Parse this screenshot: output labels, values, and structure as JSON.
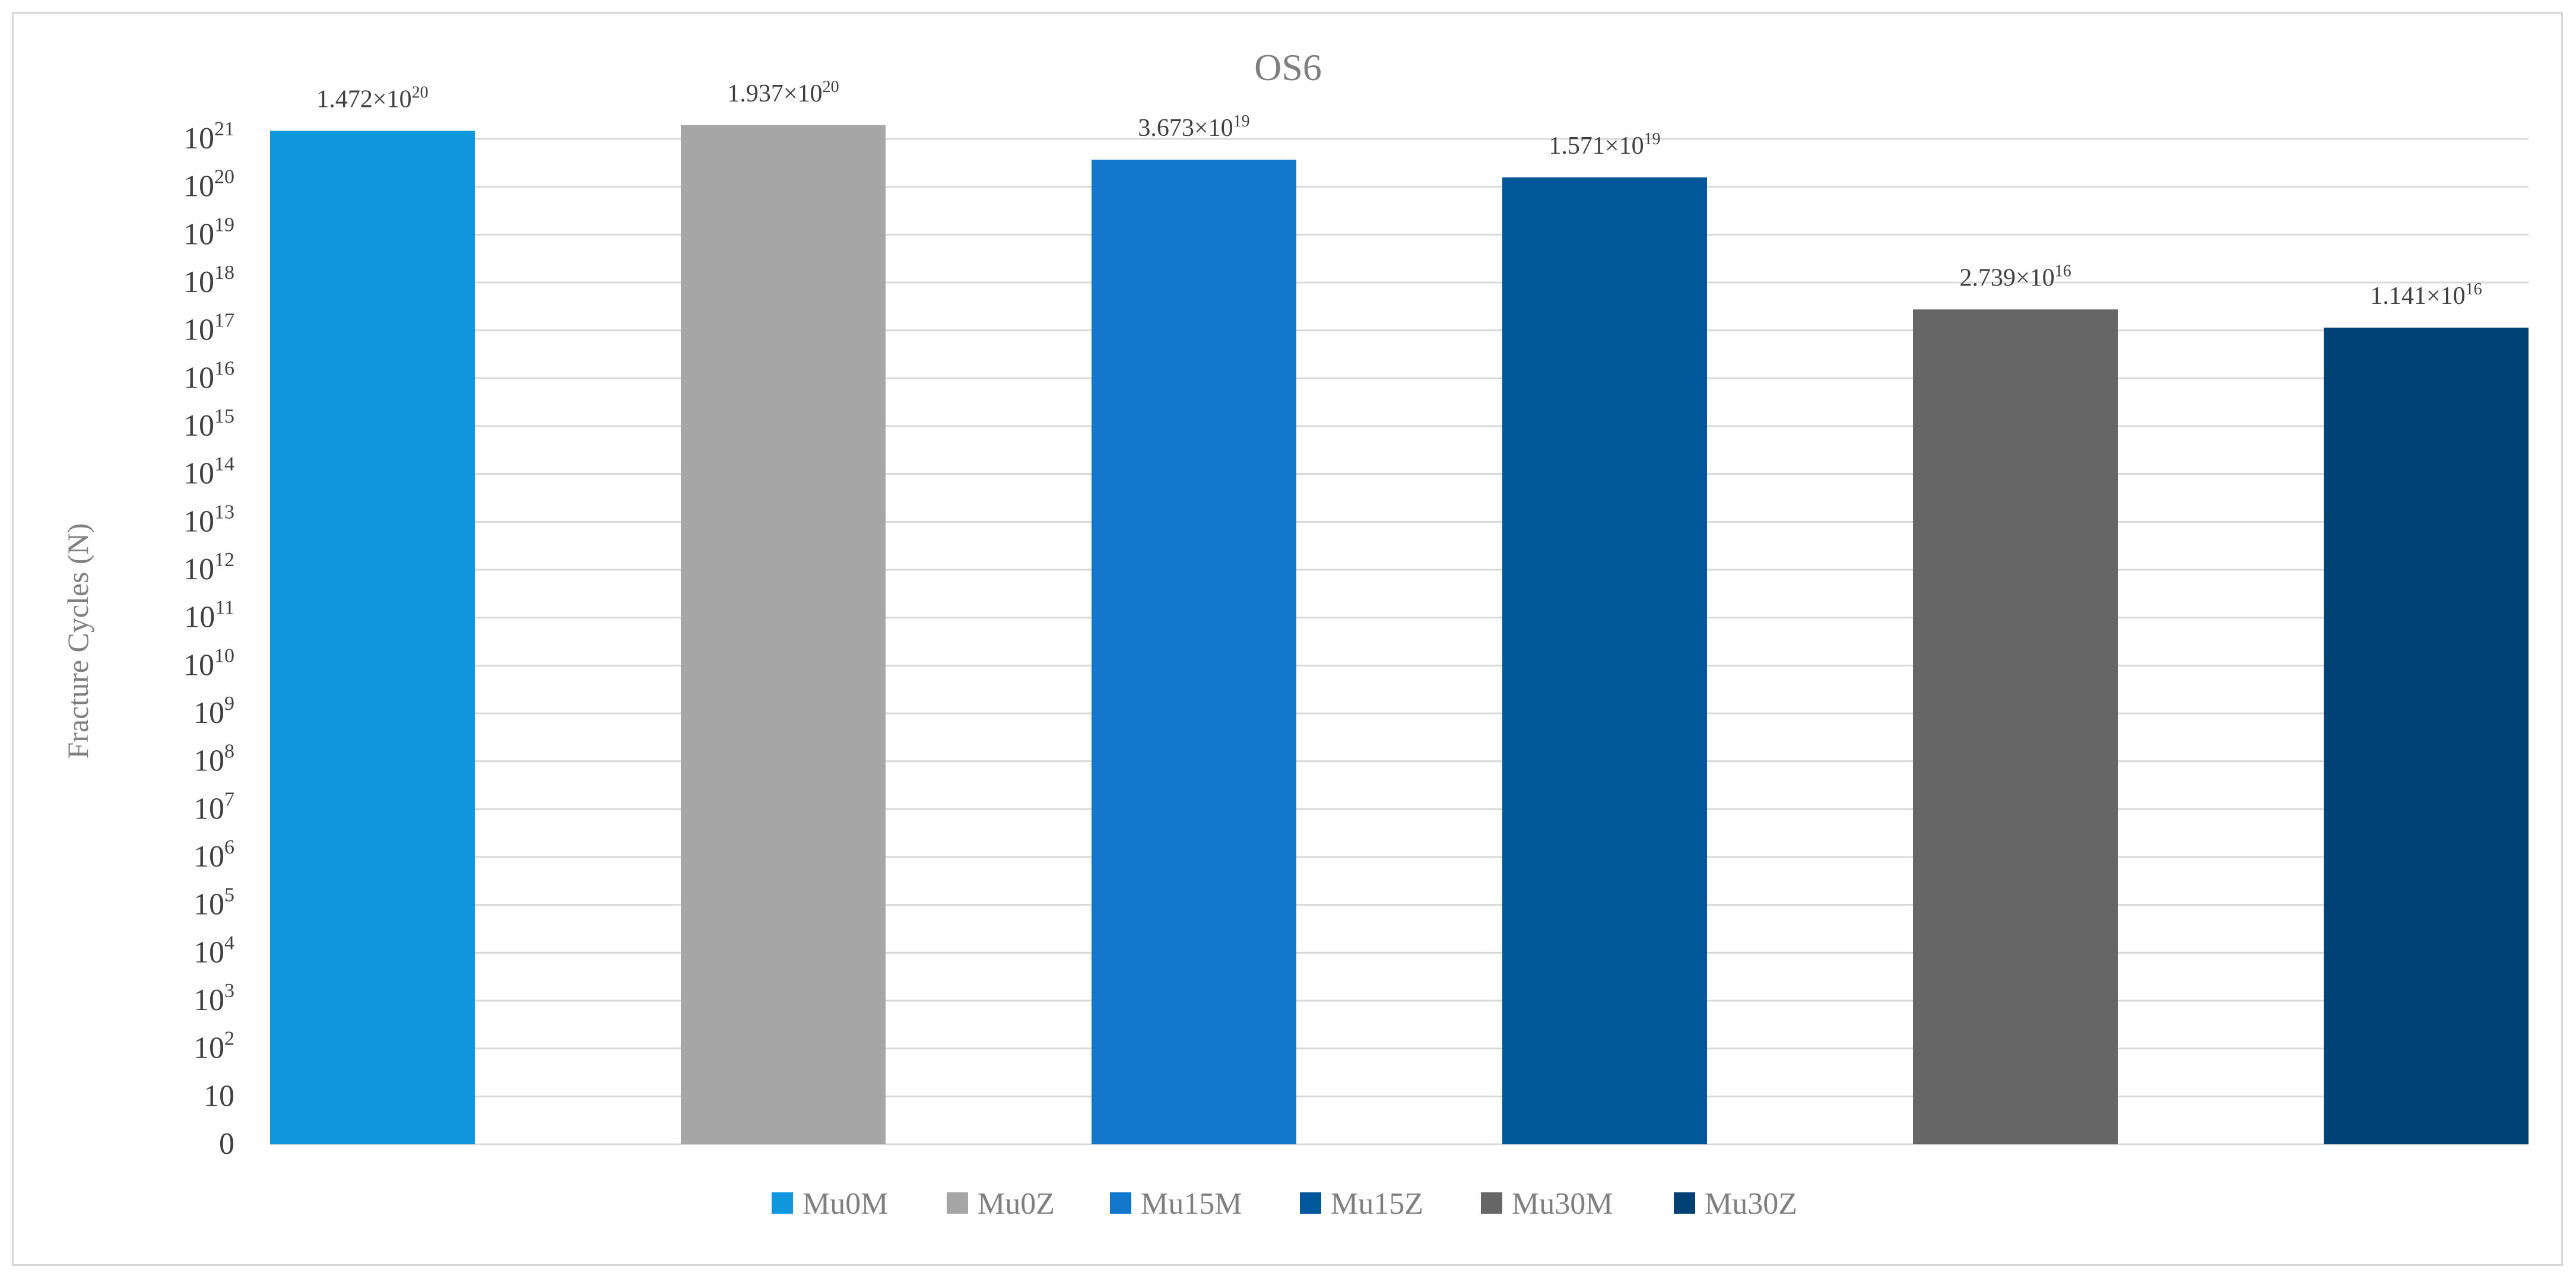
{
  "chart_data": {
    "type": "bar",
    "title": "OS6",
    "ylabel": "Fracture Cycles (N)",
    "xlabel": "",
    "y_scale": "log",
    "ylim": [
      0,
      1e+21
    ],
    "grid": true,
    "legend_position": "bottom",
    "y_ticks": [
      {
        "base": "0",
        "exp": ""
      },
      {
        "base": "10",
        "exp": ""
      },
      {
        "base": "10",
        "exp": "2"
      },
      {
        "base": "10",
        "exp": "3"
      },
      {
        "base": "10",
        "exp": "4"
      },
      {
        "base": "10",
        "exp": "5"
      },
      {
        "base": "10",
        "exp": "6"
      },
      {
        "base": "10",
        "exp": "7"
      },
      {
        "base": "10",
        "exp": "8"
      },
      {
        "base": "10",
        "exp": "9"
      },
      {
        "base": "10",
        "exp": "10"
      },
      {
        "base": "10",
        "exp": "11"
      },
      {
        "base": "10",
        "exp": "12"
      },
      {
        "base": "10",
        "exp": "13"
      },
      {
        "base": "10",
        "exp": "14"
      },
      {
        "base": "10",
        "exp": "15"
      },
      {
        "base": "10",
        "exp": "16"
      },
      {
        "base": "10",
        "exp": "17"
      },
      {
        "base": "10",
        "exp": "18"
      },
      {
        "base": "10",
        "exp": "19"
      },
      {
        "base": "10",
        "exp": "20"
      },
      {
        "base": "10",
        "exp": "21"
      }
    ],
    "series": [
      {
        "name": "Mu0M",
        "value": 1.472e+20,
        "label_mantissa": "1.472×10",
        "label_exp": "20",
        "color": "#1197dd"
      },
      {
        "name": "Mu0Z",
        "value": 1.937e+20,
        "label_mantissa": "1.937×10",
        "label_exp": "20",
        "color": "#a6a6a6"
      },
      {
        "name": "Mu15M",
        "value": 3.673e+19,
        "label_mantissa": "3.673×10",
        "label_exp": "19",
        "color": "#1276cb"
      },
      {
        "name": "Mu15Z",
        "value": 1.571e+19,
        "label_mantissa": "1.571×10",
        "label_exp": "19",
        "color": "#00579a"
      },
      {
        "name": "Mu30M",
        "value": 2.739e+16,
        "label_mantissa": "2.739×10",
        "label_exp": "16",
        "color": "#666666"
      },
      {
        "name": "Mu30Z",
        "value": 1.141e+16,
        "label_mantissa": "1.141×10",
        "label_exp": "16",
        "color": "#004274"
      }
    ]
  }
}
